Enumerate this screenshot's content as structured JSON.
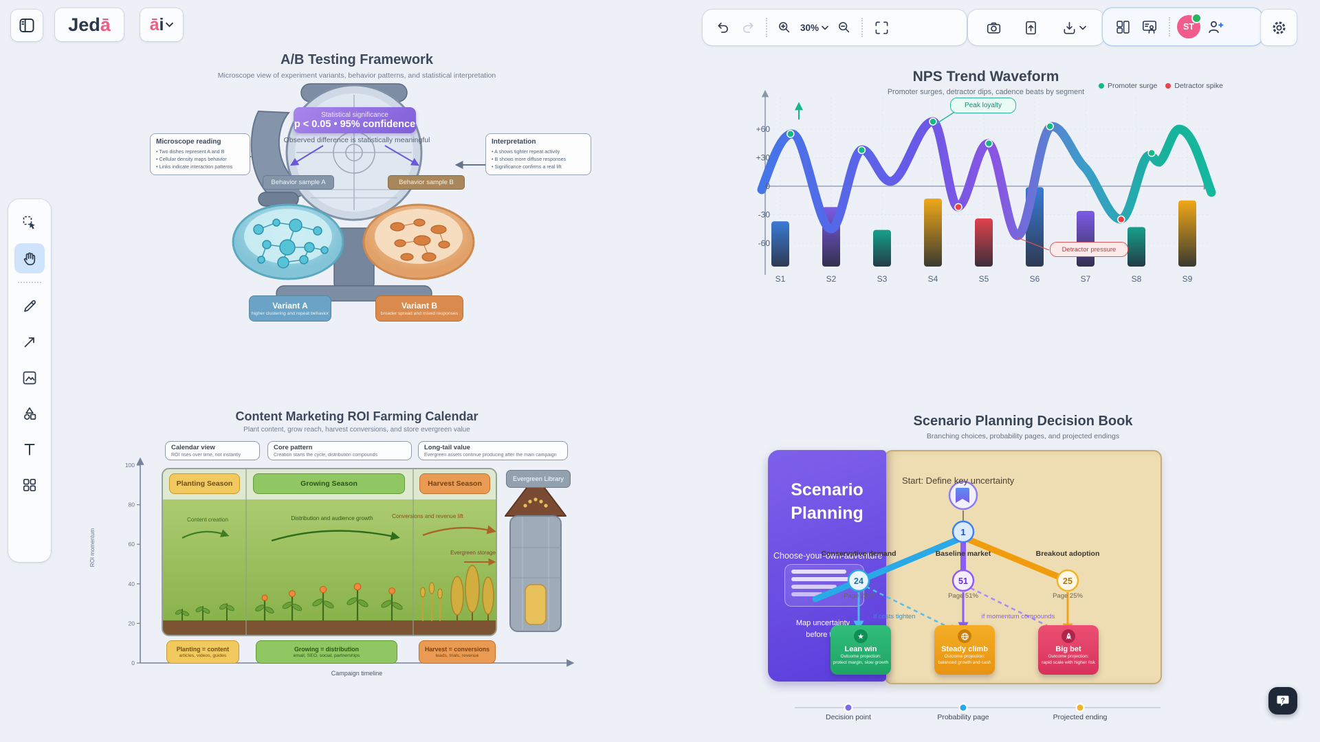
{
  "topbar": {
    "logo": {
      "part1": "Jed",
      "part2": "ā"
    },
    "ai_menu": {
      "part1": "ā",
      "part2": "i"
    },
    "zoom_level": "30%",
    "avatar_initials": "ST"
  },
  "tools": {
    "items": [
      "select",
      "hand",
      "pencil",
      "arrow",
      "image",
      "shapes",
      "text",
      "templates"
    ],
    "active": "hand"
  },
  "ab": {
    "title": "A/B Testing Framework",
    "subtitle": "Microscope view of experiment variants, behavior patterns, and statistical interpretation",
    "significance": {
      "line1": "Statistical significance",
      "line2": "p < 0.05 • 95% confidence"
    },
    "observed": "Observed difference is statistically meaningful",
    "reading": {
      "title": "Microscope reading",
      "b1": "• Two dishes represent A and B",
      "b2": "• Cellular density maps behavior",
      "b3": "• Links indicate interaction patterns"
    },
    "interpretation": {
      "title": "Interpretation",
      "b1": "• A shows tighter repeat activity",
      "b2": "• B shows more diffuse responses",
      "b3": "• Significance confirms a real lift"
    },
    "sample_a": "Behavior sample A",
    "sample_b": "Behavior sample B",
    "variant_a": {
      "name": "Variant A",
      "desc": "higher clustering and repeat behavior"
    },
    "variant_b": {
      "name": "Variant B",
      "desc": "broader spread and mixed responses"
    }
  },
  "nps": {
    "title": "NPS Trend Waveform",
    "subtitle": "Promoter surges, detractor dips, cadence beats by segment",
    "legend": {
      "promoter": "Promoter surge",
      "detractor": "Detractor spike"
    },
    "peak_label": "Peak loyalty",
    "detractor_label": "Detractor pressure"
  },
  "chart_data": [
    {
      "type": "line",
      "title": "NPS Trend Waveform",
      "x_ticks": [
        "S1",
        "S2",
        "S3",
        "S4",
        "S5",
        "S6",
        "S7",
        "S8",
        "S9"
      ],
      "ylim": [
        -75,
        75
      ],
      "y_ticks": [
        "+60",
        "+30",
        "0",
        "-30",
        "-60"
      ],
      "y_tick_values": [
        60,
        30,
        0,
        -30,
        -60
      ],
      "series": [
        {
          "name": "NPS wave",
          "type": "smooth-line",
          "extrema": [
            {
              "s": 0.6,
              "v": -4
            },
            {
              "s": 1.2,
              "v": 55
            },
            {
              "s": 2.0,
              "v": -45
            },
            {
              "s": 2.6,
              "v": 38
            },
            {
              "s": 3.2,
              "v": 5
            },
            {
              "s": 4.0,
              "v": 68
            },
            {
              "s": 4.5,
              "v": -22
            },
            {
              "s": 5.1,
              "v": 45
            },
            {
              "s": 5.7,
              "v": -52
            },
            {
              "s": 6.3,
              "v": 63
            },
            {
              "s": 7.0,
              "v": 20
            },
            {
              "s": 7.7,
              "v": -35
            },
            {
              "s": 8.3,
              "v": 35
            },
            {
              "s": 8.8,
              "v": 60
            },
            {
              "s": 9.5,
              "v": -5
            }
          ]
        },
        {
          "name": "Segment bars",
          "type": "bar",
          "values": [
            -37,
            -22,
            -46,
            -13,
            -34,
            -1,
            -26,
            -43,
            -15
          ],
          "bar_colors": [
            "#3a7bd5",
            "#7b5be6",
            "#16a08c",
            "#f0a818",
            "#e0424d",
            "#3a7bd5",
            "#7b5be6",
            "#16a08c",
            "#f0a818"
          ]
        }
      ],
      "promoter_points": [
        {
          "s": 1.2,
          "v": 55
        },
        {
          "s": 2.6,
          "v": 38
        },
        {
          "s": 4.0,
          "v": 68
        },
        {
          "s": 5.1,
          "v": 45
        },
        {
          "s": 6.3,
          "v": 63
        },
        {
          "s": 8.3,
          "v": 35
        }
      ],
      "detractor_points": [
        {
          "s": 4.5,
          "v": -22
        },
        {
          "s": 7.7,
          "v": -35
        }
      ],
      "annotations": [
        "Peak loyalty",
        "Detractor pressure"
      ],
      "legend": [
        "Promoter surge",
        "Detractor spike"
      ],
      "legend_colors": [
        "#12b886",
        "#e8434a"
      ],
      "legend_position": "top-right",
      "grid": true
    },
    {
      "type": "area",
      "title": "Content Marketing ROI Farming Calendar",
      "xlabel": "Campaign timeline",
      "ylabel": "ROI momentum",
      "y_ticks": [
        100,
        80,
        60,
        40,
        20,
        0
      ],
      "seasons": [
        "Planting Season",
        "Growing Season",
        "Harvest Season"
      ],
      "phase_arrows": [
        "Content creation",
        "Distribution and audience growth",
        "Conversions and revenue lift",
        "Evergreen storage"
      ]
    }
  ],
  "farming": {
    "title": "Content Marketing ROI Farming Calendar",
    "subtitle": "Plant content, grow reach, harvest conversions, and store evergreen value",
    "info_boxes": [
      {
        "title": "Calendar view",
        "desc": "ROI rises over time, not instantly"
      },
      {
        "title": "Core pattern",
        "desc": "Creation starts the cycle, distribution compounds"
      },
      {
        "title": "Long-tail value",
        "desc": "Evergreen assets continue producing after the main campaign"
      }
    ],
    "seasons": [
      {
        "label": "Planting Season"
      },
      {
        "label": "Growing Season"
      },
      {
        "label": "Harvest Season"
      }
    ],
    "arrows": [
      {
        "label": "Content creation"
      },
      {
        "label": "Distribution and audience growth"
      },
      {
        "label": "Conversions and revenue lift"
      }
    ],
    "storage_label": "Evergreen storage",
    "library_label": "Evergreen Library",
    "ylabel": "ROI momentum",
    "xlabel": "Campaign timeline",
    "legend_badges": [
      {
        "title": "Planting = content",
        "desc": "articles, videos, guides"
      },
      {
        "title": "Growing = distribution",
        "desc": "email, SEO, social, partnerships"
      },
      {
        "title": "Harvest = conversions",
        "desc": "leads, trials, revenue"
      }
    ]
  },
  "scenario": {
    "title": "Scenario Planning Decision Book",
    "subtitle": "Branching choices, probability pages, and projected endings",
    "cover": {
      "line1": "Scenario",
      "line2": "Planning",
      "tagline": "Choose-your-own-adventure",
      "note1": "Map uncertainty",
      "note2": "before the"
    },
    "start_label": "Start: Define key uncertainty",
    "root_node": "1",
    "branches": [
      {
        "label": "Conservative demand",
        "node": "24",
        "page": "Page 24%",
        "color": "#29a9e8"
      },
      {
        "label": "Baseline market",
        "node": "51",
        "page": "Page 51%",
        "color": "#8b5cf6"
      },
      {
        "label": "Breakout adoption",
        "node": "25",
        "page": "Page 25%",
        "color": "#f09c0c"
      }
    ],
    "conditions": [
      {
        "label": "if costs tighten",
        "color": "#2196d8"
      },
      {
        "label": "if momentum compounds",
        "color": "#8b5cf6"
      }
    ],
    "outcomes": [
      {
        "title": "Lean win",
        "projection_label": "Outcome projection:",
        "desc": "protect margin, slow growth",
        "color": "#2eb877",
        "icon": "star-icon"
      },
      {
        "title": "Steady climb",
        "projection_label": "Outcome projection:",
        "desc": "balanced growth and cash",
        "color": "#f2a81d",
        "icon": "globe-icon"
      },
      {
        "title": "Big bet",
        "projection_label": "Outcome projection:",
        "desc": "rapid scale with higher risk",
        "color": "#e8476b",
        "icon": "rocket-icon"
      }
    ],
    "legend": [
      {
        "label": "Decision point",
        "color": "#7c6ce8"
      },
      {
        "label": "Probability page",
        "color": "#2aa7e8"
      },
      {
        "label": "Projected ending",
        "color": "#f0b429"
      }
    ]
  },
  "help": {
    "icon": "?"
  }
}
